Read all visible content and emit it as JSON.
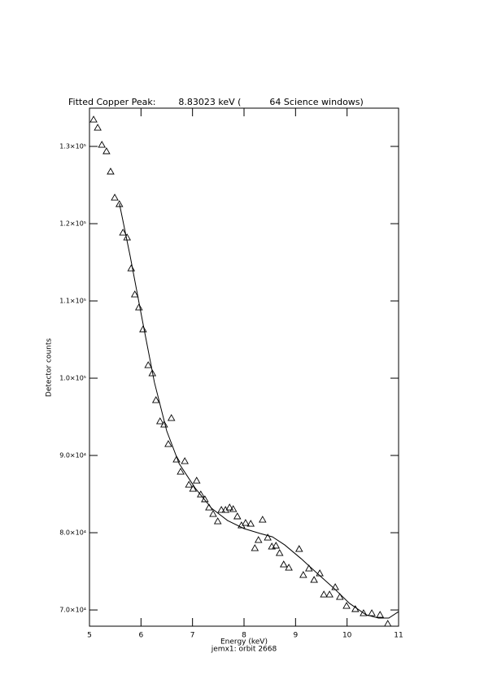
{
  "chart_data": {
    "type": "scatter",
    "title": "Fitted Copper Peak:        8.83023 keV (          64 Science windows)",
    "x_label": "Energy (keV)",
    "subtitle": "jemx1: orbit 2668",
    "y_label": "Detector counts",
    "xlim": [
      5,
      11
    ],
    "ylim": [
      67900,
      134950
    ],
    "xticks": [
      5,
      6,
      7,
      8,
      9,
      10,
      11
    ],
    "yticks": [
      {
        "value": 70000,
        "label": "7.0×10⁴"
      },
      {
        "value": 80000,
        "label": "8.0×10⁴"
      },
      {
        "value": 90000,
        "label": "9.0×10⁴"
      },
      {
        "value": 100000,
        "label": "1.0×10⁵"
      },
      {
        "value": 110000,
        "label": "1.1×10⁵"
      },
      {
        "value": 120000,
        "label": "1.2×10⁵"
      },
      {
        "value": 130000,
        "label": "1.3×10⁵"
      }
    ],
    "series": [
      {
        "type": "scatter",
        "marker": "triangle",
        "color": "#000000",
        "x": [
          5.08,
          5.16,
          5.24,
          5.33,
          5.41,
          5.49,
          5.58,
          5.65,
          5.73,
          5.81,
          5.88,
          5.96,
          6.04,
          6.14,
          6.22,
          6.29,
          6.37,
          6.45,
          6.53,
          6.59,
          6.69,
          6.77,
          6.85,
          6.93,
          7.01,
          7.08,
          7.16,
          7.24,
          7.32,
          7.4,
          7.49,
          7.56,
          7.64,
          7.72,
          7.79,
          7.87,
          7.95,
          8.03,
          8.13,
          8.21,
          8.28,
          8.36,
          8.46,
          8.54,
          8.62,
          8.69,
          8.77,
          8.87,
          9.07,
          9.15,
          9.26,
          9.36,
          9.47,
          9.55,
          9.66,
          9.77,
          9.86,
          9.99,
          10.16,
          10.32,
          10.48,
          10.64,
          10.79
        ],
        "values": [
          133470,
          132420,
          130210,
          129370,
          126740,
          123370,
          122530,
          118840,
          118210,
          114210,
          110840,
          109160,
          106320,
          101680,
          100630,
          97160,
          94420,
          94000,
          91470,
          94840,
          89470,
          87890,
          89260,
          86210,
          85680,
          86740,
          84950,
          84320,
          83260,
          82420,
          81470,
          82950,
          82950,
          83260,
          83050,
          82110,
          80950,
          81260,
          81160,
          78000,
          79050,
          81680,
          79370,
          78210,
          78320,
          77370,
          75890,
          75470,
          77890,
          74530,
          75370,
          73890,
          74740,
          72000,
          72000,
          72950,
          71680,
          70530,
          70110,
          69580,
          69580,
          69370,
          68210
        ]
      },
      {
        "type": "line",
        "color": "#000000",
        "x": [
          5.58,
          5.79,
          6.03,
          6.26,
          6.5,
          6.74,
          7.05,
          7.37,
          7.68,
          8.0,
          8.32,
          8.55,
          8.79,
          9.11,
          9.42,
          9.74,
          10.05,
          10.37,
          10.61,
          10.81,
          11.0
        ],
        "values": [
          122630,
          115790,
          107370,
          99470,
          93160,
          88950,
          85790,
          83160,
          81580,
          80530,
          79890,
          79470,
          78420,
          76630,
          74740,
          72840,
          70840,
          69370,
          68950,
          68950,
          69790
        ]
      }
    ]
  }
}
